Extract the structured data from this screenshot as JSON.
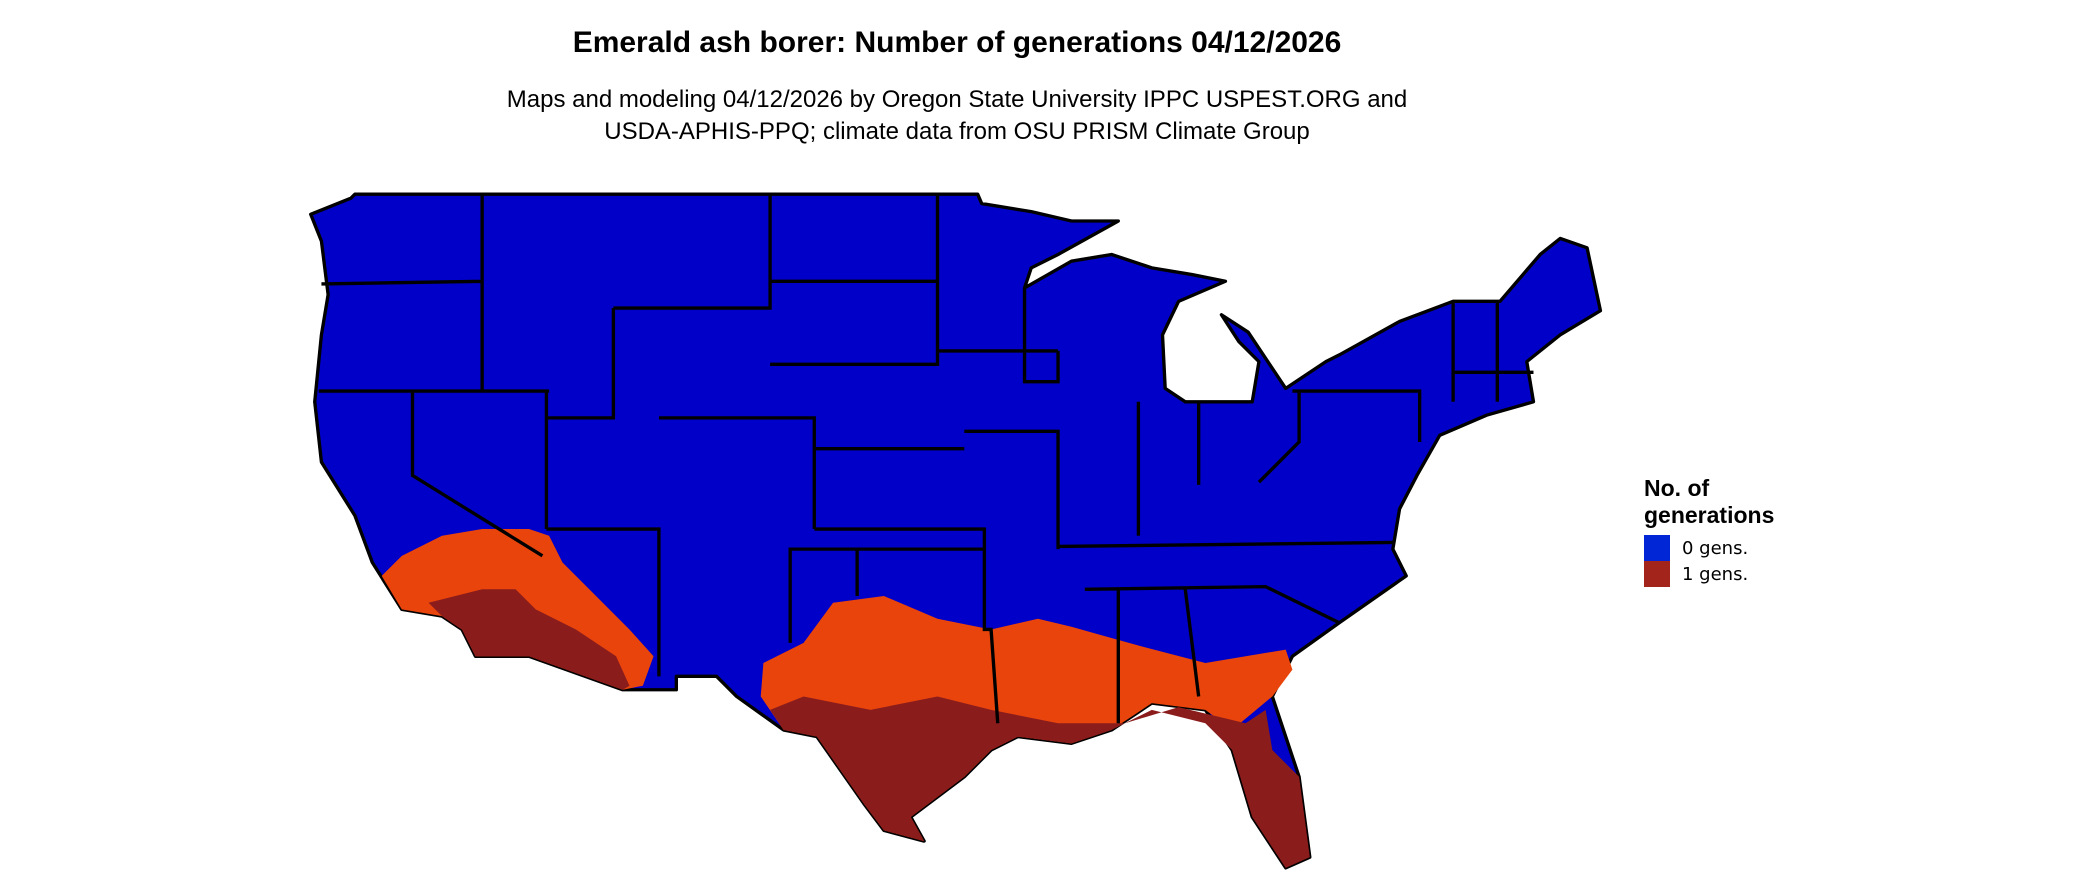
{
  "title": "Emerald ash borer: Number of generations 04/12/2026",
  "subtitle_line1": "Maps and modeling 04/12/2026 by Oregon State University IPPC USPEST.ORG and",
  "subtitle_line2": "USDA-APHIS-PPQ; climate data from OSU PRISM Climate Group",
  "legend": {
    "title_line1": "No. of",
    "title_line2": "generations",
    "items": [
      {
        "label": "0 gens.",
        "color": "#0026d6"
      },
      {
        "label": "1 gens.",
        "color": "#a3241a"
      }
    ]
  },
  "map_colors": {
    "zero_gens": "#0000c8",
    "one_gen_early": "#e8440c",
    "one_gen_mid": "#c8360f",
    "one_gen_full": "#8b1c1c",
    "borders": "#000000"
  }
}
